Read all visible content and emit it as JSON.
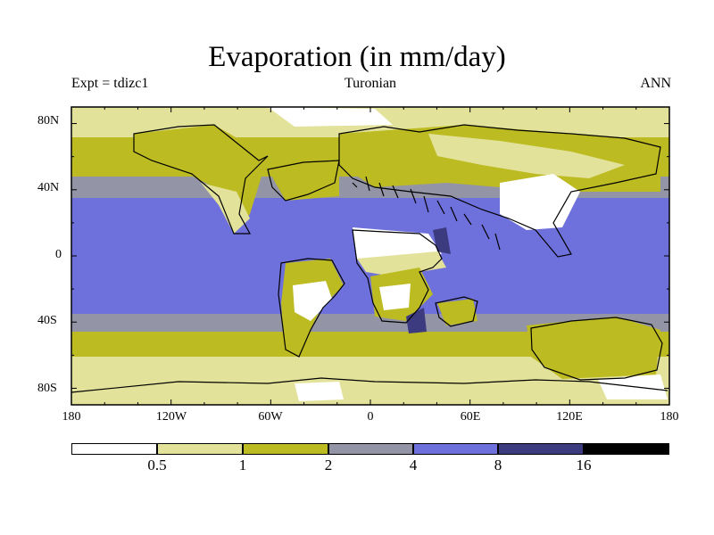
{
  "title": "Evaporation (in mm/day)",
  "subtitle_left": "Expt = tdizc1",
  "subtitle_center": "Turonian",
  "subtitle_right": "ANN",
  "y_ticks": [
    "80N",
    "40N",
    "0",
    "40S",
    "80S"
  ],
  "x_ticks": [
    "180",
    "120W",
    "60W",
    "0",
    "60E",
    "120E",
    "180"
  ],
  "colorbar": {
    "levels": [
      "0.5",
      "1",
      "2",
      "4",
      "8",
      "16"
    ],
    "colors": [
      "#ffffff",
      "#e3e29a",
      "#bdbb22",
      "#9394a6",
      "#6e70db",
      "#3d3b80",
      "#000000"
    ]
  },
  "chart_data": {
    "type": "heatmap",
    "title": "Evaporation (in mm/day)",
    "units": "mm/day",
    "projection": "cylindrical equidistant",
    "xlim": [
      -180,
      180
    ],
    "ylim": [
      -90,
      90
    ],
    "x_ticks": [
      "180",
      "120W",
      "60W",
      "0",
      "60E",
      "120E",
      "180"
    ],
    "y_ticks": [
      "80N",
      "40N",
      "0",
      "40S",
      "80S"
    ],
    "contour_levels": [
      0.5,
      1,
      2,
      4,
      8,
      16
    ],
    "bands_by_latitude": [
      {
        "lat_range": [
          70,
          90
        ],
        "band": "0.5-1"
      },
      {
        "lat_range": [
          47,
          70
        ],
        "band": "1-2"
      },
      {
        "lat_range": [
          35,
          47
        ],
        "band": "2-4"
      },
      {
        "lat_range": [
          -35,
          35
        ],
        "band": "4-8"
      },
      {
        "lat_range": [
          -47,
          -35
        ],
        "band": "2-4"
      },
      {
        "lat_range": [
          -70,
          -47
        ],
        "band": "1-2"
      },
      {
        "lat_range": [
          -90,
          -70
        ],
        "band": "0.5-1"
      }
    ]
  }
}
